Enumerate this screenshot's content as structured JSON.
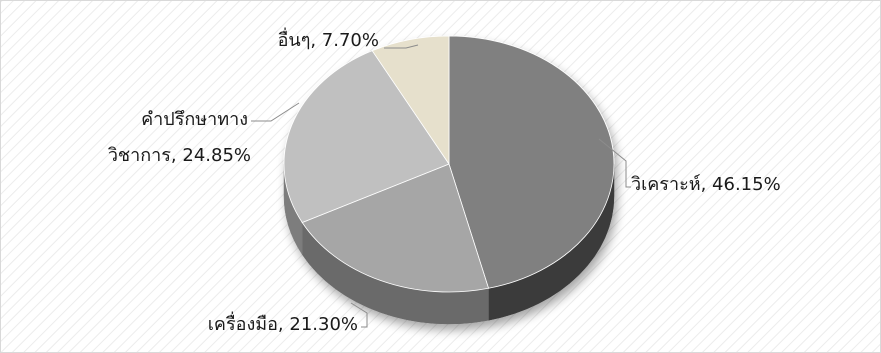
{
  "chart_data": {
    "type": "pie",
    "style": "3d",
    "categories": [
      "วิเคราะห์",
      "เครื่องมือ",
      "คำปรึกษาทาง วิชาการ",
      "อื่นๆ"
    ],
    "values": [
      46.15,
      21.3,
      24.85,
      7.7
    ],
    "unit": "%",
    "labels": [
      {
        "lines": [
          "วิเคราะห์, 46.15%"
        ]
      },
      {
        "lines": [
          "เครื่องมือ, 21.30%"
        ]
      },
      {
        "lines": [
          "คำปรึกษาทาง",
          "วิชาการ, 24.85%"
        ]
      },
      {
        "lines": [
          "อื่นๆ, 7.70%"
        ]
      }
    ],
    "colors": [
      "#808080",
      "#a6a6a6",
      "#c0c0c0",
      "#e6e0cc"
    ],
    "side_colors": [
      "#3a3a3a",
      "#6a6a6a",
      "#7d7d7d",
      "#a8a390"
    ],
    "legend": "none",
    "background": "diagonal-hatch"
  }
}
